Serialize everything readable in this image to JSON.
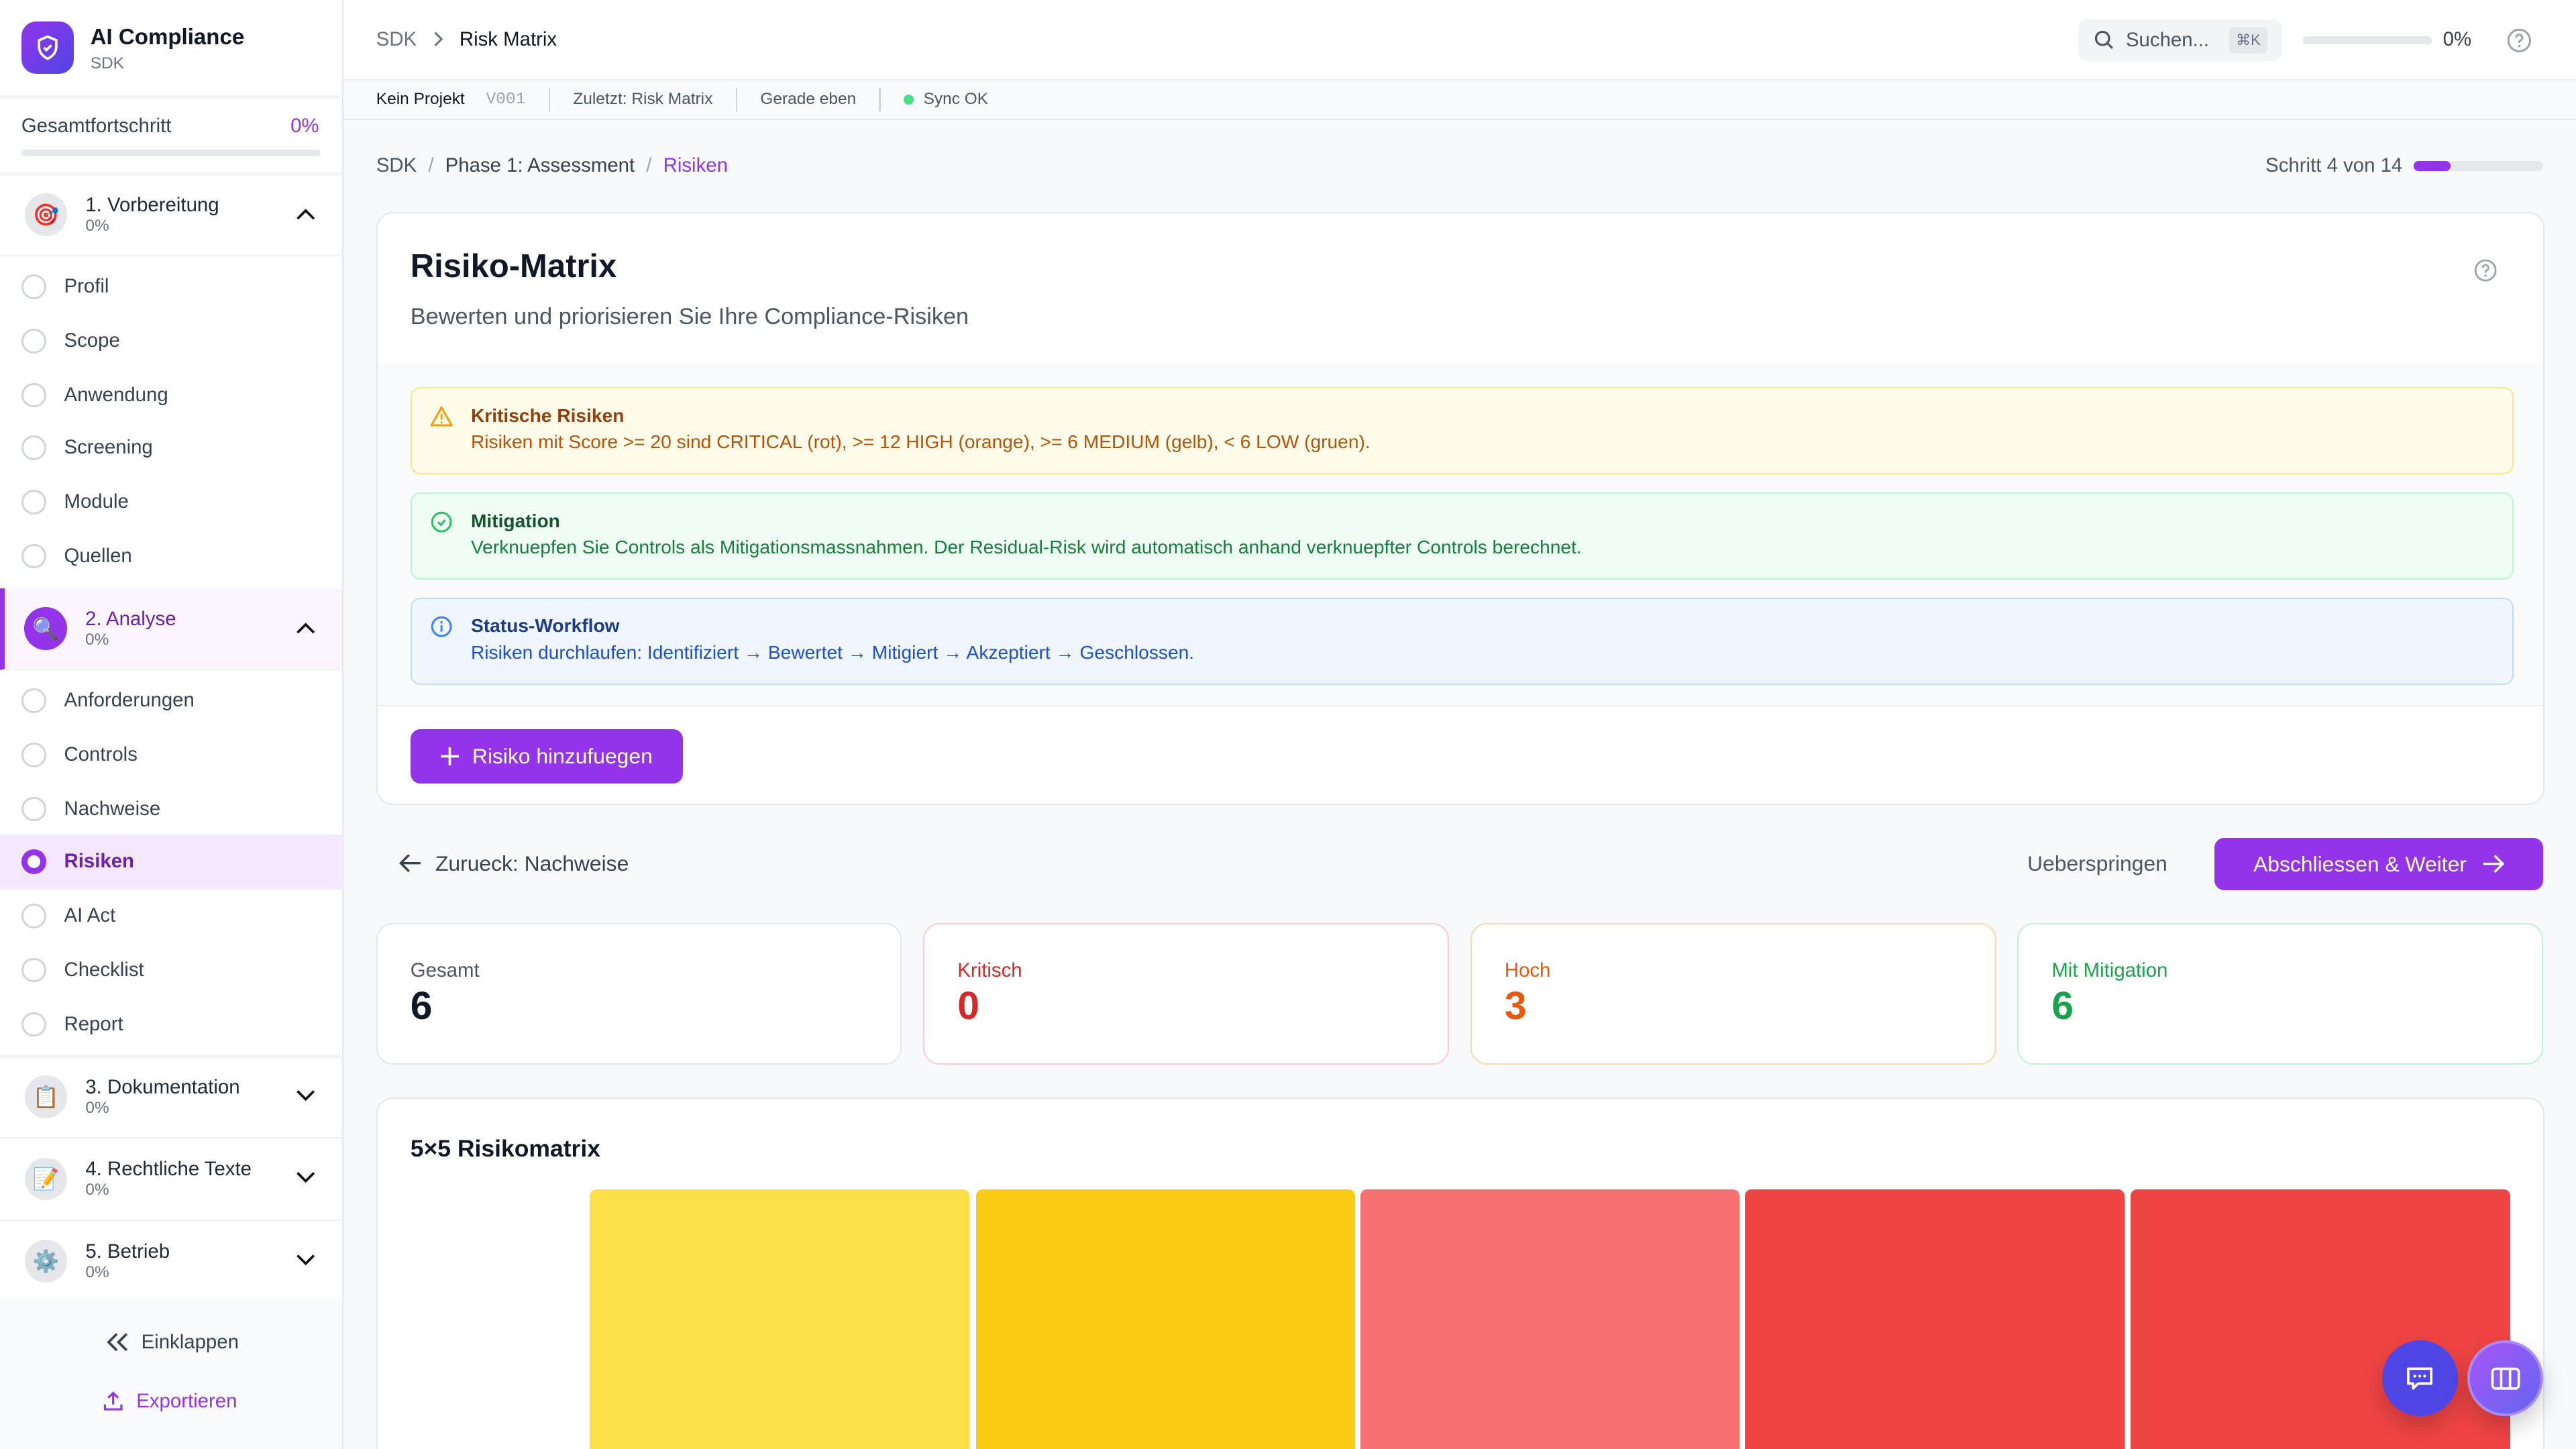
{
  "app": {
    "title": "AI Compliance",
    "subtitle": "SDK"
  },
  "sidebar": {
    "overall_label": "Gesamtfortschritt",
    "overall_value": "0%",
    "overall_progress": 0,
    "phases": [
      {
        "label": "1. Vorbereitung",
        "percent": "0%",
        "icon": "target-icon",
        "expanded": true,
        "items": [
          "Profil",
          "Scope",
          "Anwendung",
          "Screening",
          "Module",
          "Quellen"
        ]
      },
      {
        "label": "2. Analyse",
        "percent": "0%",
        "icon": "magnifier-icon",
        "expanded": true,
        "items": [
          "Anforderungen",
          "Controls",
          "Nachweise",
          "Risiken",
          "AI Act",
          "Checklist",
          "Report"
        ],
        "active_item": "Risiken"
      },
      {
        "label": "3. Dokumentation",
        "percent": "0%",
        "icon": "clipboard-icon",
        "expanded": false
      },
      {
        "label": "4. Rechtliche Texte",
        "percent": "0%",
        "icon": "pencil-document-icon",
        "expanded": false
      },
      {
        "label": "5. Betrieb",
        "percent": "0%",
        "icon": "gear-icon",
        "expanded": false
      }
    ],
    "collapse_label": "Einklappen",
    "export_label": "Exportieren"
  },
  "header": {
    "breadcrumb": [
      "SDK",
      "Risk Matrix"
    ],
    "search_placeholder": "Suchen...",
    "shortcut": "⌘K",
    "progress_value": "0%",
    "progress": 0
  },
  "subbar": {
    "project": "Kein Projekt",
    "version": "V001",
    "last": "Zuletzt: Risk Matrix",
    "time": "Gerade eben",
    "sync": "Sync OK"
  },
  "breadcrumb": {
    "items": [
      "SDK",
      "Phase 1: Assessment",
      "Risiken"
    ],
    "step_label": "Schritt 4 von 14",
    "step_progress": 0.2857
  },
  "page": {
    "title": "Risiko-Matrix",
    "subtitle": "Bewerten und priorisieren Sie Ihre Compliance-Risiken",
    "alerts": [
      {
        "title": "Kritische Risiken",
        "text": "Risiken mit Score >= 20 sind CRITICAL (rot), >= 12 HIGH (orange), >= 6 MEDIUM (gelb), < 6 LOW (gruen)."
      },
      {
        "title": "Mitigation",
        "text": "Verknuepfen Sie Controls als Mitigationsmassnahmen. Der Residual-Risk wird automatisch anhand verknuepfter Controls berechnet."
      },
      {
        "title": "Status-Workflow",
        "text": "Risiken durchlaufen: Identifiziert → Bewertet → Mitigiert → Akzeptiert → Geschlossen."
      }
    ],
    "add_button": "Risiko hinzufuegen"
  },
  "nav": {
    "back": "Zurueck: Nachweise",
    "skip": "Ueberspringen",
    "next": "Abschliessen & Weiter"
  },
  "stats": [
    {
      "label": "Gesamt",
      "value": "6",
      "color": "#111827"
    },
    {
      "label": "Kritisch",
      "value": "0",
      "color": "#dc2626"
    },
    {
      "label": "Hoch",
      "value": "3",
      "color": "#ea580c"
    },
    {
      "label": "Mit Mitigation",
      "value": "6",
      "color": "#16a34a"
    }
  ],
  "matrix": {
    "title": "5×5 Risikomatrix",
    "first_row_colors": [
      "#fde047",
      "#facc15",
      "#f87171",
      "#ef4444",
      "#ef4444"
    ]
  },
  "colors": {
    "accent": "#9333ea"
  }
}
